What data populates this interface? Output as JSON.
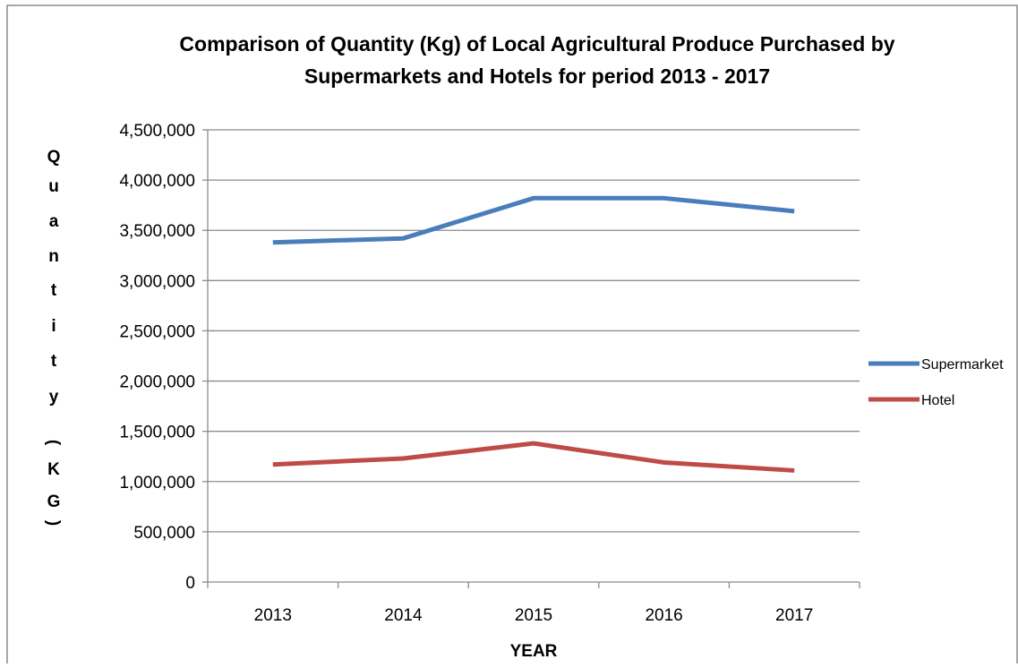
{
  "chart_data": {
    "type": "line",
    "title_line1": "Comparison of Quantity (Kg) of Local Agricultural Produce Purchased by",
    "title_line2": "Supermarkets and Hotels  for period 2013 - 2017",
    "xlabel": "YEAR",
    "ylabel": "Quantity (KG)",
    "ylabel_chars": [
      "Q",
      "u",
      "a",
      "n",
      "t",
      "i",
      "t",
      "y",
      "(",
      "K",
      "G",
      ")"
    ],
    "categories": [
      "2013",
      "2014",
      "2015",
      "2016",
      "2017"
    ],
    "ylim": [
      0,
      4500000
    ],
    "yticks": [
      0,
      500000,
      1000000,
      1500000,
      2000000,
      2500000,
      3000000,
      3500000,
      4000000,
      4500000
    ],
    "ytick_labels": [
      "0",
      "500,000",
      "1,000,000",
      "1,500,000",
      "2,000,000",
      "2,500,000",
      "3,000,000",
      "3,500,000",
      "4,000,000",
      "4,500,000"
    ],
    "grid": true,
    "legend_position": "right",
    "series": [
      {
        "name": "Supermarket",
        "color": "#4a7ebb",
        "values": [
          3380000,
          3420000,
          3820000,
          3820000,
          3690000
        ]
      },
      {
        "name": "Hotel",
        "color": "#be4b48",
        "values": [
          1170000,
          1230000,
          1380000,
          1190000,
          1110000
        ]
      }
    ]
  }
}
